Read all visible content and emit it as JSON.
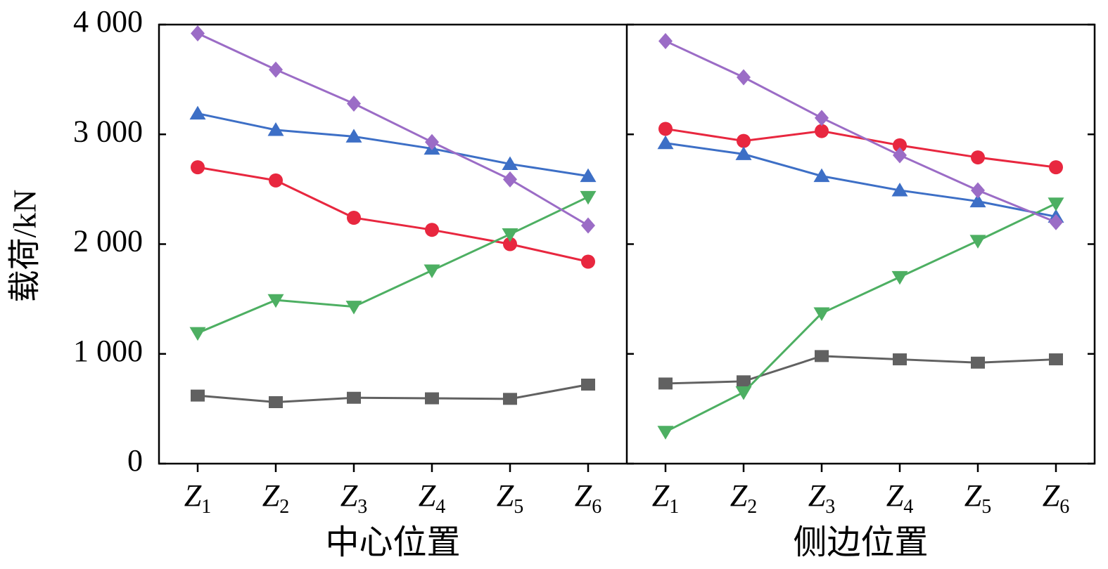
{
  "chart_data": {
    "type": "line",
    "ylabel": "载荷/kN",
    "ylim": [
      0,
      4000
    ],
    "yticks": [
      0,
      1000,
      2000,
      3000,
      4000
    ],
    "ytick_labels": [
      "0",
      "1 000",
      "2 000",
      "3 000",
      "4 000"
    ],
    "grid": false,
    "legend": "none",
    "panels": [
      {
        "label": "中心位置",
        "categories": [
          {
            "main": "Z",
            "sub": "1"
          },
          {
            "main": "Z",
            "sub": "2"
          },
          {
            "main": "Z",
            "sub": "3"
          },
          {
            "main": "Z",
            "sub": "4"
          },
          {
            "main": "Z",
            "sub": "5"
          },
          {
            "main": "Z",
            "sub": "6"
          }
        ],
        "series": [
          {
            "marker": "square",
            "color": "#616161",
            "values": [
              620,
              560,
              600,
              595,
              590,
              720
            ]
          },
          {
            "marker": "circle",
            "color": "#e8273f",
            "values": [
              2700,
              2580,
              2240,
              2130,
              2000,
              1840
            ]
          },
          {
            "marker": "triangle-up",
            "color": "#3d6fc6",
            "values": [
              3190,
              3040,
              2980,
              2870,
              2730,
              2620
            ]
          },
          {
            "marker": "triangle-down",
            "color": "#4daf62",
            "values": [
              1190,
              1490,
              1430,
              1760,
              2090,
              2430
            ]
          },
          {
            "marker": "diamond",
            "color": "#9b6cc6",
            "values": [
              3920,
              3590,
              3280,
              2930,
              2590,
              2170
            ]
          }
        ]
      },
      {
        "label": "侧边位置",
        "categories": [
          {
            "main": "Z",
            "sub": "1"
          },
          {
            "main": "Z",
            "sub": "2"
          },
          {
            "main": "Z",
            "sub": "3"
          },
          {
            "main": "Z",
            "sub": "4"
          },
          {
            "main": "Z",
            "sub": "5"
          },
          {
            "main": "Z",
            "sub": "6"
          }
        ],
        "series": [
          {
            "marker": "square",
            "color": "#616161",
            "values": [
              730,
              750,
              980,
              950,
              920,
              950
            ]
          },
          {
            "marker": "circle",
            "color": "#e8273f",
            "values": [
              3050,
              2940,
              3030,
              2900,
              2790,
              2700
            ]
          },
          {
            "marker": "triangle-up",
            "color": "#3d6fc6",
            "values": [
              2920,
              2820,
              2620,
              2490,
              2390,
              2250
            ]
          },
          {
            "marker": "triangle-down",
            "color": "#4daf62",
            "values": [
              290,
              650,
              1370,
              1700,
              2030,
              2370
            ]
          },
          {
            "marker": "diamond",
            "color": "#9b6cc6",
            "values": [
              3850,
              3520,
              3150,
              2810,
              2490,
              2200
            ]
          }
        ]
      }
    ]
  }
}
